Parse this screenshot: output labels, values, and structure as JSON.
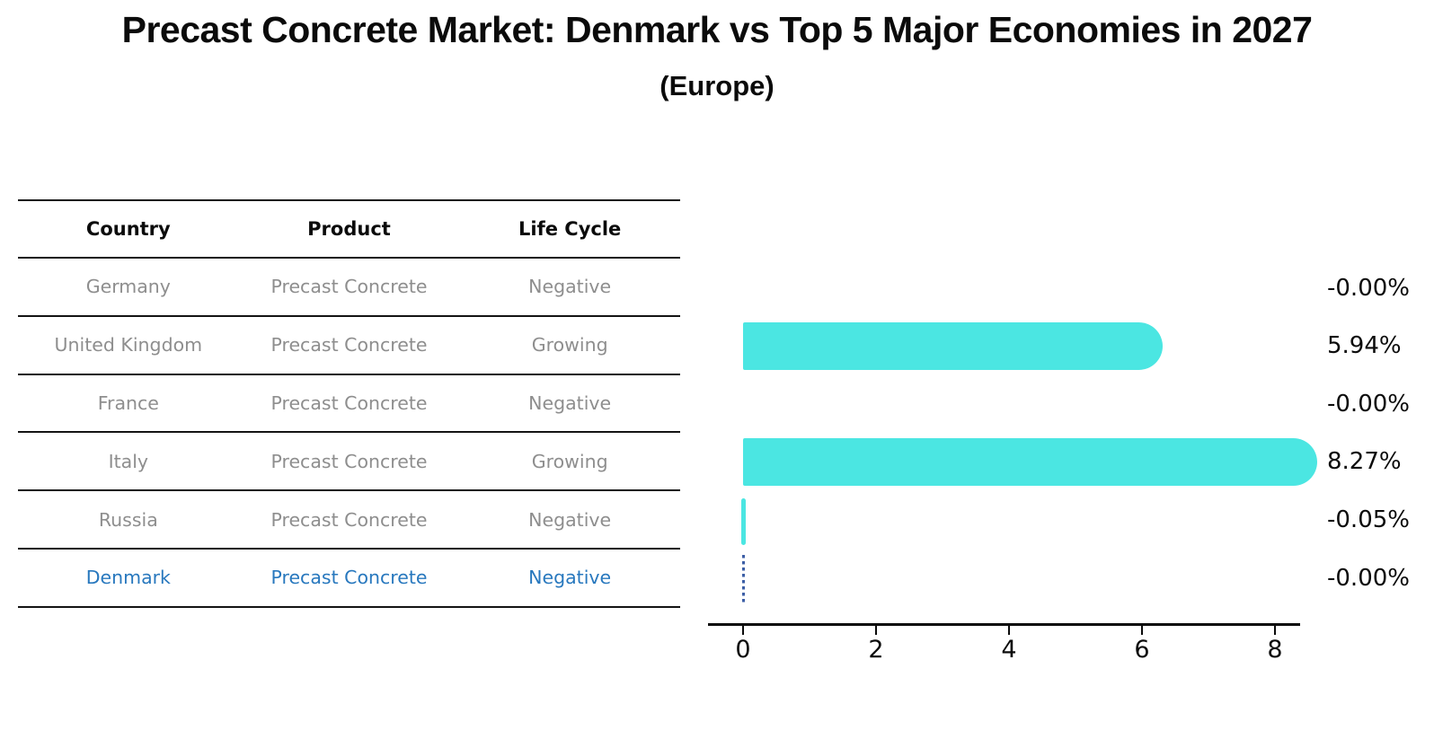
{
  "title": "Precast Concrete Market: Denmark vs Top 5 Major Economies in 2027",
  "subtitle": "(Europe)",
  "colors": {
    "bar": "#4be6e2",
    "highlight_text": "#2878be",
    "marker_line": "#3d5fa6",
    "row_text": "#8e8e8e",
    "text": "#0b0b0b"
  },
  "table": {
    "headers": [
      "Country",
      "Product",
      "Life Cycle"
    ],
    "rows": [
      {
        "country": "Germany",
        "product": "Precast Concrete",
        "life_cycle": "Negative",
        "highlighted": false
      },
      {
        "country": "United Kingdom",
        "product": "Precast Concrete",
        "life_cycle": "Growing",
        "highlighted": false
      },
      {
        "country": "France",
        "product": "Precast Concrete",
        "life_cycle": "Negative",
        "highlighted": false
      },
      {
        "country": "Italy",
        "product": "Precast Concrete",
        "life_cycle": "Growing",
        "highlighted": false
      },
      {
        "country": "Russia",
        "product": "Precast Concrete",
        "life_cycle": "Negative",
        "highlighted": false
      },
      {
        "country": "Denmark",
        "product": "Precast Concrete",
        "life_cycle": "Negative",
        "highlighted": true
      }
    ]
  },
  "chart_data": {
    "type": "bar",
    "orientation": "horizontal",
    "title": "Precast Concrete Market: Denmark vs Top 5 Major Economies in 2027",
    "subtitle": "(Europe)",
    "categories": [
      "Germany",
      "United Kingdom",
      "France",
      "Italy",
      "Russia",
      "Denmark"
    ],
    "values": [
      -0.0,
      5.94,
      -0.0,
      8.27,
      -0.05,
      -0.0
    ],
    "value_labels": [
      "-0.00%",
      "5.94%",
      "-0.00%",
      "8.27%",
      "-0.05%",
      "-0.00%"
    ],
    "bar_render": [
      "none",
      "bar",
      "none",
      "bar",
      "tiny",
      "dashed-marker"
    ],
    "xticks": [
      0,
      2,
      4,
      6,
      8
    ],
    "xlim": [
      -0.5,
      8.4
    ],
    "xlabel": "",
    "ylabel": "",
    "grid": false,
    "legend": false
  }
}
